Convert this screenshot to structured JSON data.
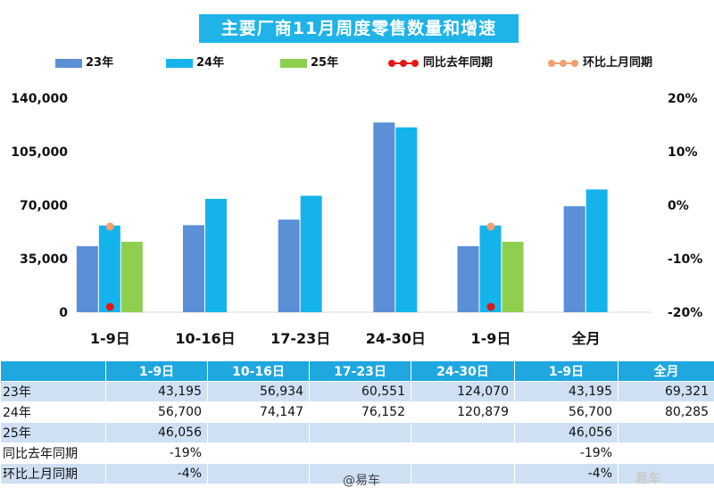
{
  "title": "主要厂商11月周度零售数量和增速",
  "colors": {
    "s23": "#5b8fd6",
    "s24": "#15b3ec",
    "s25": "#8ecf4f",
    "yoy": "#e41616",
    "mom": "#f2a070"
  },
  "legend": {
    "s23": "23年",
    "s24": "24年",
    "s25": "25年",
    "yoy": "同比去年同期",
    "mom": "环比上月同期"
  },
  "chart_data": {
    "type": "bar",
    "title": "主要厂商11月周度零售数量和增速",
    "categories": [
      "1-9日",
      "10-16日",
      "17-23日",
      "24-30日",
      "1-9日",
      "全月"
    ],
    "series": [
      {
        "name": "23年",
        "values": [
          43195,
          56934,
          60551,
          124070,
          43195,
          69321
        ]
      },
      {
        "name": "24年",
        "values": [
          56700,
          74147,
          76152,
          120879,
          56700,
          80285
        ]
      },
      {
        "name": "25年",
        "values": [
          46056,
          null,
          null,
          null,
          46056,
          null
        ]
      }
    ],
    "line_series": [
      {
        "name": "同比去年同期",
        "values": [
          -19,
          null,
          null,
          null,
          -19,
          null
        ],
        "unit": "%"
      },
      {
        "name": "环比上月同期",
        "values": [
          -4,
          null,
          null,
          null,
          -4,
          null
        ],
        "unit": "%"
      }
    ],
    "ylim": [
      0,
      140000
    ],
    "yticks": [
      "0",
      "35,000",
      "70,000",
      "105,000",
      "140,000"
    ],
    "y2lim": [
      -20,
      20
    ],
    "y2ticks": [
      "-20%",
      "-10%",
      "0%",
      "10%",
      "20%"
    ]
  },
  "table": {
    "header": [
      "",
      "1-9日",
      "10-16日",
      "17-23日",
      "24-30日",
      "1-9日",
      "全月"
    ],
    "rows": [
      [
        "23年",
        "43,195",
        "56,934",
        "60,551",
        "124,070",
        "43,195",
        "69,321"
      ],
      [
        "24年",
        "56,700",
        "74,147",
        "76,152",
        "120,879",
        "56,700",
        "80,285"
      ],
      [
        "25年",
        "46,056",
        "",
        "",
        "",
        "46,056",
        ""
      ],
      [
        "同比去年同期",
        "-19%",
        "",
        "",
        "",
        "-19%",
        ""
      ],
      [
        "环比上月同期",
        "-4%",
        "",
        "",
        "",
        "-4%",
        ""
      ]
    ]
  },
  "watermark": "@易车",
  "watermark2": "易车"
}
